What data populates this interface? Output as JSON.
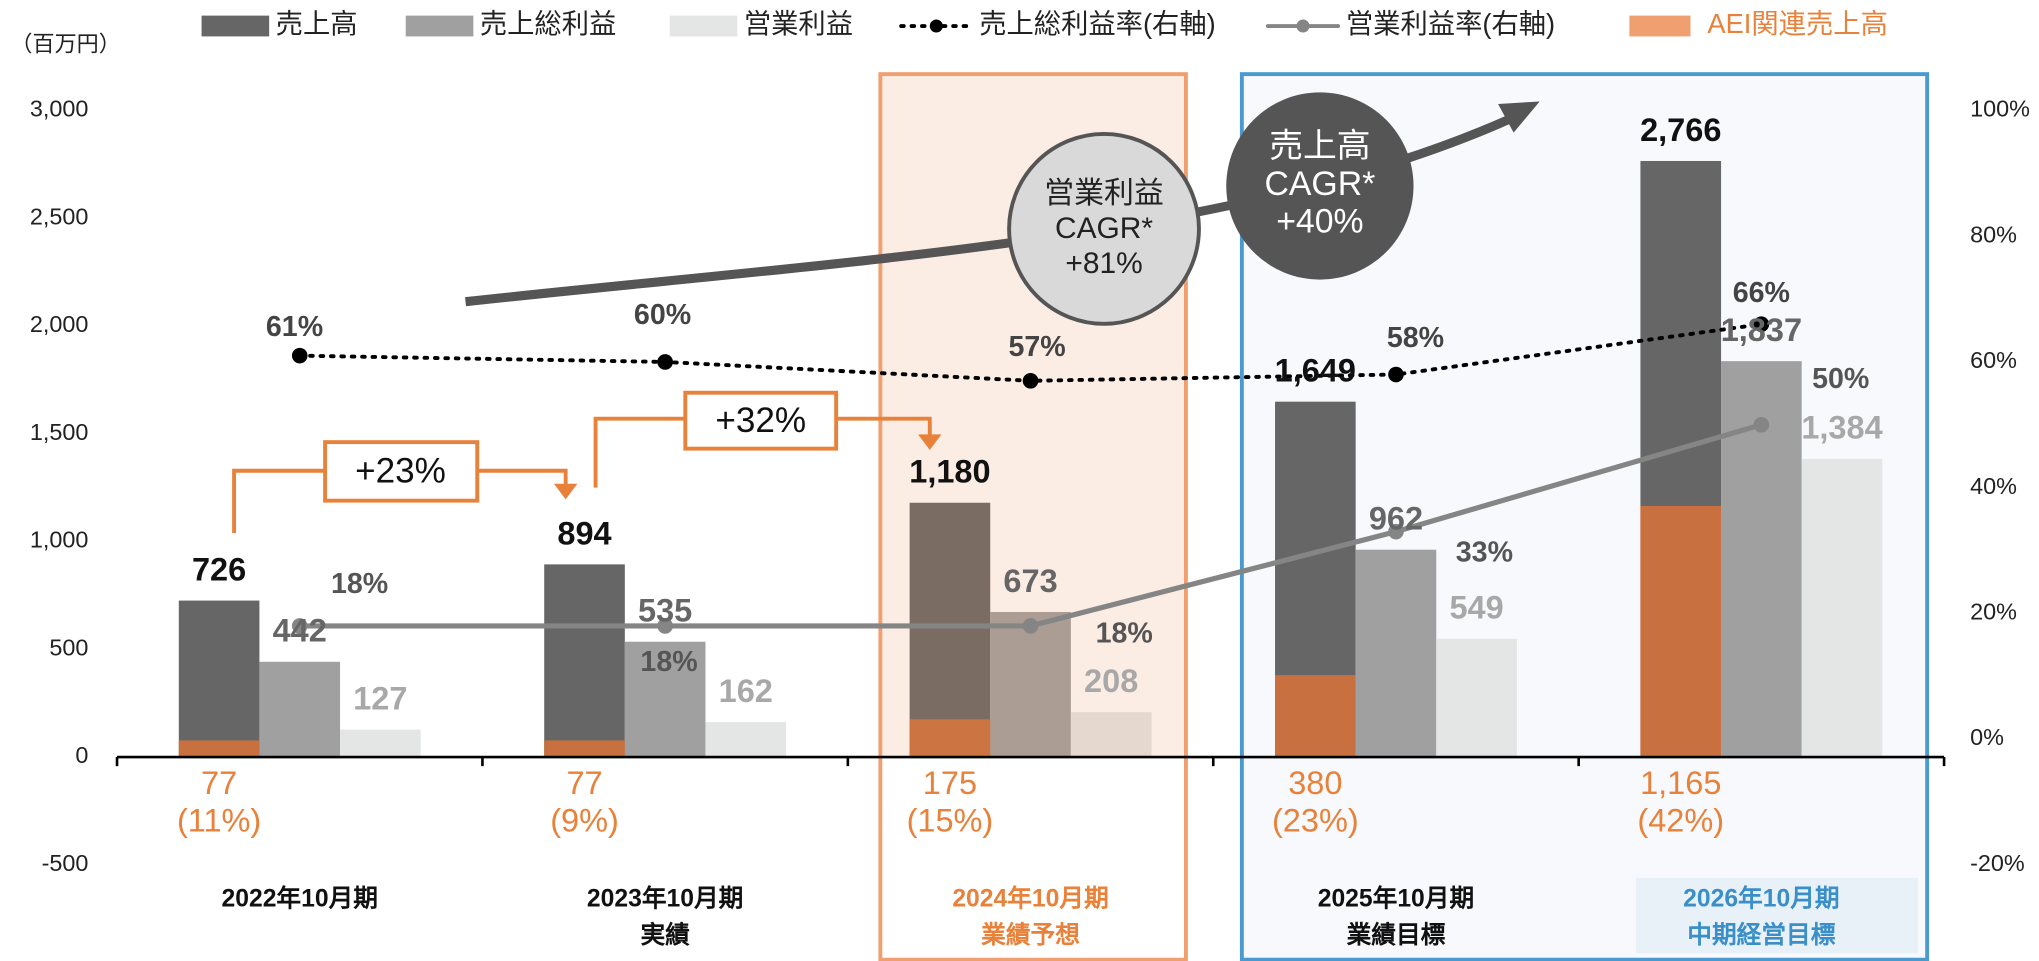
{
  "chart_data": {
    "type": "bar",
    "unit_label": "（百万円）",
    "categories": [
      [
        "2022年10月期"
      ],
      [
        "2023年10月期",
        "実績"
      ],
      [
        "2024年10月期",
        "業績予想"
      ],
      [
        "2025年10月期",
        "業績目標"
      ],
      [
        "2026年10月期",
        "中期経営目標"
      ]
    ],
    "category_colors": [
      "#111111",
      "#111111",
      "#e8813a",
      "#111111",
      "#3a8fc8"
    ],
    "series": [
      {
        "name": "売上高",
        "color": "#666666",
        "label_color": "#111111",
        "values": [
          726,
          894,
          1180,
          1649,
          2766
        ],
        "value_labels": [
          "726",
          "894",
          "1,180",
          "1,649",
          "2,766"
        ]
      },
      {
        "name": "売上総利益",
        "color": "#a0a0a0",
        "label_color": "#666666",
        "values": [
          442,
          535,
          673,
          962,
          1837
        ],
        "value_labels": [
          "442",
          "535",
          "673",
          "962",
          "1,837"
        ]
      },
      {
        "name": "営業利益",
        "color": "#e4e6e6",
        "label_color": "#a8a8a8",
        "values": [
          127,
          162,
          208,
          549,
          1384
        ],
        "value_labels": [
          "127",
          "162",
          "208",
          "549",
          "1,384"
        ]
      },
      {
        "name": "売上総利益率(右軸)",
        "color": "#000000",
        "axis": "y2",
        "dash": true,
        "values": [
          61,
          60,
          57,
          58,
          66
        ],
        "value_labels": [
          "61%",
          "60%",
          "57%",
          "58%",
          "66%"
        ]
      },
      {
        "name": "営業利益率(右軸)",
        "color": "#858585",
        "axis": "y2",
        "dash": false,
        "values": [
          18,
          18,
          18,
          33,
          50
        ],
        "value_labels": [
          "18%",
          "18%",
          "18%",
          "33%",
          "50%"
        ]
      },
      {
        "name": "AEI関連売上高",
        "color": "#c8703f",
        "label_color": "#e8813a",
        "values": [
          77,
          77,
          175,
          380,
          1165
        ],
        "value_labels": [
          "77",
          "77",
          "175",
          "380",
          "1,165"
        ],
        "share_labels": [
          "(11%)",
          "(9%)",
          "(15%)",
          "(23%)",
          "(42%)"
        ]
      }
    ],
    "ylim": [
      -500,
      3000
    ],
    "yticks": [
      {
        "value": 3000,
        "label": "3,000"
      },
      {
        "value": 2500,
        "label": "2,500"
      },
      {
        "value": 2000,
        "label": "2,000"
      },
      {
        "value": 1500,
        "label": "1,500"
      },
      {
        "value": 1000,
        "label": "1,000"
      },
      500,
      0,
      -500
    ],
    "y2lim": [
      -20,
      100
    ],
    "y2ticks": [
      {
        "value": 100,
        "label": "100%"
      },
      {
        "value": 80,
        "label": "80%"
      },
      {
        "value": 60,
        "label": "60%"
      },
      {
        "value": 40,
        "label": "40%"
      },
      {
        "value": 20,
        "label": "20%"
      },
      {
        "value": 0,
        "label": "0%"
      },
      {
        "value": -20,
        "label": "-20%"
      }
    ],
    "annotations": {
      "growth": [
        "+23%",
        "+32%"
      ],
      "cagr_operating": [
        "営業利益",
        "CAGR*",
        "+81%"
      ],
      "cagr_sales": [
        "売上高",
        "CAGR*",
        "+40%"
      ]
    }
  }
}
